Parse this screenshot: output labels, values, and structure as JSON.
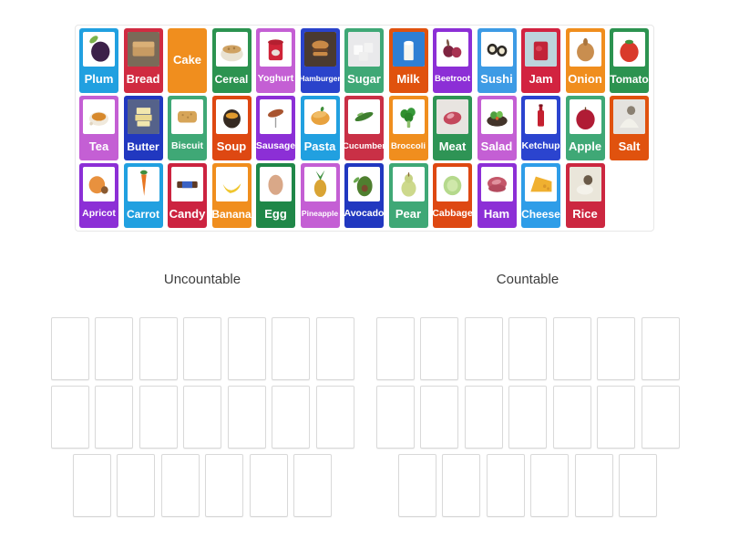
{
  "page": {
    "background": "#ffffff"
  },
  "tray": {
    "border_color": "#e7e7e7",
    "cards": [
      {
        "label": "Plum",
        "color": "#21a0e0",
        "has_image": true,
        "art": [
          [
            "e",
            34,
            22,
            15,
            8,
            -35,
            "#79b24a"
          ],
          [
            "c",
            55,
            57,
            29,
            "#3c2149"
          ]
        ]
      },
      {
        "label": "Bread",
        "color": "#d02b41",
        "has_image": true,
        "art": [
          [
            "r",
            0,
            0,
            100,
            100,
            0,
            "#7a6a58"
          ],
          [
            "r",
            16,
            34,
            68,
            36,
            5,
            "#c79b63"
          ],
          [
            "r",
            16,
            28,
            68,
            16,
            5,
            "#dab077"
          ]
        ]
      },
      {
        "label": "Cake",
        "color": "#f08e1e",
        "has_image": false,
        "art": []
      },
      {
        "label": "Cereal",
        "color": "#2c9350",
        "has_image": true,
        "art": [
          [
            "e",
            50,
            64,
            35,
            21,
            0,
            "#e9e2d2"
          ],
          [
            "e",
            50,
            50,
            29,
            12,
            0,
            "#cfa263"
          ],
          [
            "c",
            40,
            49,
            3.5,
            "#a87c42"
          ],
          [
            "c",
            57,
            47,
            3.5,
            "#a87c42"
          ]
        ]
      },
      {
        "label": "Yoghurt",
        "color": "#c45fd4",
        "has_image": true,
        "art": [
          [
            "r",
            28,
            30,
            44,
            52,
            6,
            "#cf2438"
          ],
          [
            "e",
            50,
            30,
            24,
            8,
            0,
            "#b51f30"
          ],
          [
            "e",
            50,
            60,
            13,
            9,
            0,
            "#e8dfd8"
          ]
        ]
      },
      {
        "label": "Hamburger",
        "color": "#2a43cb",
        "has_image": true,
        "art": [
          [
            "r",
            0,
            0,
            100,
            100,
            0,
            "#4a3a30"
          ],
          [
            "e",
            50,
            38,
            26,
            13,
            0,
            "#c98946"
          ],
          [
            "r",
            26,
            48,
            48,
            9,
            2,
            "#6e4426"
          ],
          [
            "r",
            27,
            58,
            46,
            11,
            5,
            "#c98946"
          ]
        ]
      },
      {
        "label": "Sugar",
        "color": "#3fa876",
        "has_image": true,
        "art": [
          [
            "r",
            0,
            0,
            100,
            100,
            0,
            "#e9e9eb"
          ],
          [
            "r",
            18,
            38,
            28,
            28,
            3,
            "#fbfbfb"
          ],
          [
            "r",
            50,
            32,
            28,
            28,
            3,
            "#f3f3f3"
          ],
          [
            "r",
            34,
            58,
            28,
            26,
            3,
            "#efefef"
          ]
        ]
      },
      {
        "label": "Milk",
        "color": "#e0520e",
        "has_image": true,
        "art": [
          [
            "r",
            0,
            0,
            100,
            100,
            0,
            "#2e7fd4"
          ],
          [
            "r",
            35,
            32,
            30,
            50,
            3,
            "#f7f6f0"
          ],
          [
            "e",
            50,
            32,
            15,
            6,
            0,
            "#ffffff"
          ]
        ]
      },
      {
        "label": "Beetroot",
        "color": "#8c2fd6",
        "has_image": true,
        "art": [
          [
            "c",
            38,
            56,
            17,
            "#7e2440"
          ],
          [
            "c",
            63,
            59,
            15,
            "#a83352"
          ],
          [
            "e",
            36,
            32,
            4,
            11,
            -12,
            "#7e5a4a"
          ]
        ]
      },
      {
        "label": "Sushi",
        "color": "#3d9be5",
        "has_image": true,
        "art": [
          [
            "c",
            35,
            50,
            16,
            "#2e2a26"
          ],
          [
            "c",
            35,
            50,
            9,
            "#efe8d2"
          ],
          [
            "c",
            65,
            55,
            16,
            "#2e2a26"
          ],
          [
            "c",
            65,
            55,
            9,
            "#efe8d2"
          ]
        ]
      },
      {
        "label": "Jam",
        "color": "#d22340",
        "has_image": true,
        "art": [
          [
            "r",
            0,
            0,
            100,
            100,
            0,
            "#bcd4dc"
          ],
          [
            "r",
            28,
            28,
            44,
            54,
            6,
            "#c22338"
          ],
          [
            "e",
            44,
            48,
            10,
            8,
            0,
            "#d94456"
          ]
        ]
      },
      {
        "label": "Onion",
        "color": "#f08e1e",
        "has_image": true,
        "art": [
          [
            "c",
            50,
            58,
            27,
            "#c98e4f"
          ],
          [
            "e",
            50,
            29,
            7,
            11,
            0,
            "#a9743c"
          ]
        ]
      },
      {
        "label": "Tomato",
        "color": "#2c9350",
        "has_image": true,
        "art": [
          [
            "c",
            50,
            58,
            29,
            "#d93a2b"
          ],
          [
            "e",
            50,
            29,
            13,
            6,
            0,
            "#3f8f3a"
          ]
        ]
      },
      {
        "label": "Tea",
        "color": "#c45fd4",
        "has_image": true,
        "art": [
          [
            "e",
            50,
            56,
            30,
            20,
            0,
            "#f0e9dc"
          ],
          [
            "e",
            50,
            50,
            22,
            12,
            0,
            "#d7892c"
          ],
          [
            "c",
            26,
            70,
            5,
            "#e0d4c0"
          ]
        ]
      },
      {
        "label": "Butter",
        "color": "#2138c0",
        "has_image": true,
        "art": [
          [
            "r",
            0,
            0,
            100,
            100,
            0,
            "#55628a"
          ],
          [
            "r",
            28,
            24,
            44,
            18,
            2,
            "#f2e7ae"
          ],
          [
            "r",
            24,
            44,
            52,
            18,
            2,
            "#ead890"
          ],
          [
            "r",
            30,
            63,
            40,
            15,
            2,
            "#f2e7ae"
          ]
        ]
      },
      {
        "label": "Biscuit",
        "color": "#3fa876",
        "has_image": true,
        "art": [
          [
            "r",
            20,
            34,
            60,
            33,
            10,
            "#d7a558"
          ],
          [
            "c",
            36,
            45,
            3,
            "#b08442"
          ],
          [
            "c",
            52,
            52,
            3,
            "#b08442"
          ],
          [
            "c",
            62,
            43,
            3,
            "#b08442"
          ]
        ]
      },
      {
        "label": "Soup",
        "color": "#de4812",
        "has_image": true,
        "art": [
          [
            "c",
            50,
            56,
            27,
            "#352a22"
          ],
          [
            "e",
            50,
            47,
            19,
            9,
            0,
            "#e09a2e"
          ]
        ]
      },
      {
        "label": "Sausage",
        "color": "#8c2fd6",
        "has_image": true,
        "art": [
          [
            "e",
            50,
            40,
            25,
            10,
            -15,
            "#a85430"
          ],
          [
            "r",
            48,
            52,
            4,
            30,
            2,
            "#a0a0a0"
          ]
        ]
      },
      {
        "label": "Pasta",
        "color": "#21a0e0",
        "has_image": true,
        "art": [
          [
            "e",
            50,
            54,
            29,
            20,
            0,
            "#e8a23e"
          ],
          [
            "e",
            48,
            44,
            22,
            9,
            -10,
            "#f0bc66"
          ],
          [
            "e",
            56,
            28,
            5,
            7,
            20,
            "#3f8f3a"
          ]
        ]
      },
      {
        "label": "Cucumber",
        "color": "#c93046",
        "has_image": true,
        "art": [
          [
            "e",
            50,
            50,
            30,
            9,
            -20,
            "#3f7f2f"
          ],
          [
            "e",
            38,
            43,
            10,
            3.5,
            -20,
            "#7ab45f"
          ]
        ]
      },
      {
        "label": "Broccoli",
        "color": "#f08e1e",
        "has_image": true,
        "art": [
          [
            "c",
            37,
            42,
            13,
            "#2f8f2f"
          ],
          [
            "c",
            58,
            37,
            13,
            "#37993a"
          ],
          [
            "c",
            50,
            52,
            14,
            "#2a842a"
          ],
          [
            "r",
            45,
            62,
            10,
            20,
            3,
            "#8fbf6f"
          ]
        ]
      },
      {
        "label": "Meat",
        "color": "#2e9455",
        "has_image": true,
        "art": [
          [
            "r",
            0,
            0,
            100,
            100,
            0,
            "#e8e4e0"
          ],
          [
            "e",
            50,
            54,
            28,
            18,
            -8,
            "#c4485c"
          ],
          [
            "e",
            44,
            48,
            12,
            7,
            -20,
            "#e8a0ac"
          ]
        ]
      },
      {
        "label": "Salad",
        "color": "#c45fd4",
        "has_image": true,
        "art": [
          [
            "e",
            50,
            62,
            32,
            16,
            0,
            "#42342a"
          ],
          [
            "c",
            40,
            46,
            11,
            "#4f9f3f"
          ],
          [
            "c",
            58,
            44,
            10,
            "#6fbf4f"
          ],
          [
            "c",
            50,
            55,
            5,
            "#d9622e"
          ]
        ]
      },
      {
        "label": "Ketchup",
        "color": "#2b44cf",
        "has_image": true,
        "art": [
          [
            "r",
            40,
            32,
            20,
            46,
            4,
            "#c42030"
          ],
          [
            "r",
            45,
            20,
            10,
            14,
            2,
            "#b01c2a"
          ],
          [
            "r",
            44,
            14,
            12,
            7,
            2,
            "#7a1420"
          ]
        ]
      },
      {
        "label": "Apple",
        "color": "#3fa876",
        "has_image": true,
        "art": [
          [
            "c",
            50,
            58,
            29,
            "#b01c35"
          ],
          [
            "r",
            48,
            22,
            4,
            11,
            2,
            "#6e4426"
          ]
        ]
      },
      {
        "label": "Salt",
        "color": "#e0520e",
        "has_image": true,
        "art": [
          [
            "r",
            0,
            0,
            100,
            100,
            0,
            "#e4e2de"
          ],
          [
            "p",
            "M20,82 Q50,30 80,82 Z",
            "#f2f1ea"
          ],
          [
            "c",
            56,
            32,
            13,
            "#8a8072"
          ]
        ]
      },
      {
        "label": "Apricot",
        "color": "#8c2fd6",
        "has_image": true,
        "art": [
          [
            "c",
            44,
            52,
            25,
            "#e8913e"
          ],
          [
            "c",
            68,
            67,
            11,
            "#8a5a30"
          ]
        ]
      },
      {
        "label": "Carrot",
        "color": "#21a0e0",
        "has_image": true,
        "art": [
          [
            "p",
            "M43,22 L59,22 L52,84 Z",
            "#e87722"
          ],
          [
            "e",
            51,
            16,
            11,
            6,
            0,
            "#3f8f3f"
          ]
        ]
      },
      {
        "label": "Candy",
        "color": "#cc2340",
        "has_image": true,
        "art": [
          [
            "r",
            18,
            42,
            64,
            19,
            4,
            "#5e3a24"
          ],
          [
            "r",
            34,
            42,
            32,
            19,
            0,
            "#3a62c4"
          ]
        ]
      },
      {
        "label": "Banana",
        "color": "#f08e1e",
        "has_image": true,
        "art": [
          [
            "p",
            "M22,50 Q45,86 78,48 Q72,72 44,76 Q28,68 22,50 Z",
            "#f0c62e"
          ]
        ]
      },
      {
        "label": "Egg",
        "color": "#1f8748",
        "has_image": true,
        "art": [
          [
            "e",
            50,
            52,
            23,
            29,
            0,
            "#d9a888"
          ]
        ]
      },
      {
        "label": "Pineapple",
        "color": "#c45fd4",
        "has_image": true,
        "art": [
          [
            "e",
            50,
            62,
            19,
            25,
            0,
            "#d9a434"
          ],
          [
            "p",
            "M50,38 L36,12 L50,28 L64,10 L52,36 Z",
            "#3f8f3f"
          ]
        ]
      },
      {
        "label": "Avocado",
        "color": "#2138c0",
        "has_image": true,
        "art": [
          [
            "e",
            52,
            56,
            24,
            29,
            5,
            "#4f7f2f"
          ],
          [
            "c",
            52,
            62,
            10,
            "#7a4a2e"
          ],
          [
            "e",
            26,
            38,
            11,
            5,
            -40,
            "#6aa84f"
          ]
        ]
      },
      {
        "label": "Pear",
        "color": "#3fa876",
        "has_image": true,
        "art": [
          [
            "e",
            50,
            62,
            23,
            24,
            0,
            "#cdd98c"
          ],
          [
            "c",
            50,
            34,
            13,
            "#c6d283"
          ],
          [
            "r",
            48,
            16,
            4,
            12,
            2,
            "#8a6a3a"
          ]
        ]
      },
      {
        "label": "Cabbage",
        "color": "#de4812",
        "has_image": true,
        "art": [
          [
            "c",
            50,
            54,
            28,
            "#b5d98c"
          ],
          [
            "c",
            50,
            54,
            17,
            "#cfe8aa"
          ]
        ]
      },
      {
        "label": "Ham",
        "color": "#8c2fd6",
        "has_image": true,
        "art": [
          [
            "e",
            50,
            48,
            30,
            19,
            0,
            "#c4576a"
          ],
          [
            "e",
            50,
            62,
            27,
            11,
            0,
            "#b34a5e"
          ],
          [
            "e",
            48,
            44,
            15,
            7,
            -10,
            "#e0919e"
          ]
        ]
      },
      {
        "label": "Cheese",
        "color": "#2e9de8",
        "has_image": true,
        "art": [
          [
            "p",
            "M18,72 L84,72 L84,42 L34,28 Z",
            "#f0b030"
          ],
          [
            "c",
            62,
            56,
            5,
            "#d9962a"
          ],
          [
            "c",
            73,
            63,
            4,
            "#d9962a"
          ]
        ]
      },
      {
        "label": "Rice",
        "color": "#cc2740",
        "has_image": true,
        "art": [
          [
            "r",
            0,
            0,
            100,
            100,
            0,
            "#eae6da"
          ],
          [
            "c",
            58,
            38,
            14,
            "#6a5a48"
          ],
          [
            "e",
            48,
            66,
            26,
            14,
            0,
            "#f4f2ea"
          ]
        ]
      }
    ]
  },
  "groups": [
    {
      "label": "Uncountable",
      "slot_rows": [
        7,
        7,
        6
      ]
    },
    {
      "label": "Countable",
      "slot_rows": [
        7,
        7,
        6
      ]
    }
  ]
}
